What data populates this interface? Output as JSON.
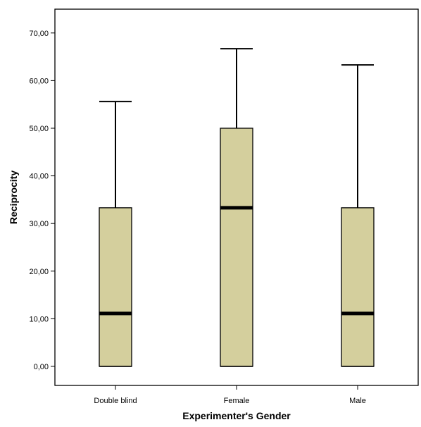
{
  "chart_data": {
    "type": "boxplot",
    "xlabel": "Experimenter's Gender",
    "ylabel": "Reciprocity",
    "ylim": [
      -4,
      75
    ],
    "yticks": [
      0,
      10,
      20,
      30,
      40,
      50,
      60,
      70
    ],
    "ytick_labels": [
      "0,00",
      "10,00",
      "20,00",
      "30,00",
      "40,00",
      "50,00",
      "60,00",
      "70,00"
    ],
    "grid": false,
    "legend": "none",
    "box_color": "#d4cf9d",
    "categories": [
      "Double blind",
      "Female",
      "Male"
    ],
    "boxes": [
      {
        "category": "Double blind",
        "min": 0,
        "q1": 0,
        "median": 11.1,
        "q3": 33.3,
        "max": 55.6
      },
      {
        "category": "Female",
        "min": 0,
        "q1": 0,
        "median": 33.3,
        "q3": 50.0,
        "max": 66.7
      },
      {
        "category": "Male",
        "min": 0,
        "q1": 0,
        "median": 11.1,
        "q3": 33.3,
        "max": 63.3
      }
    ]
  }
}
